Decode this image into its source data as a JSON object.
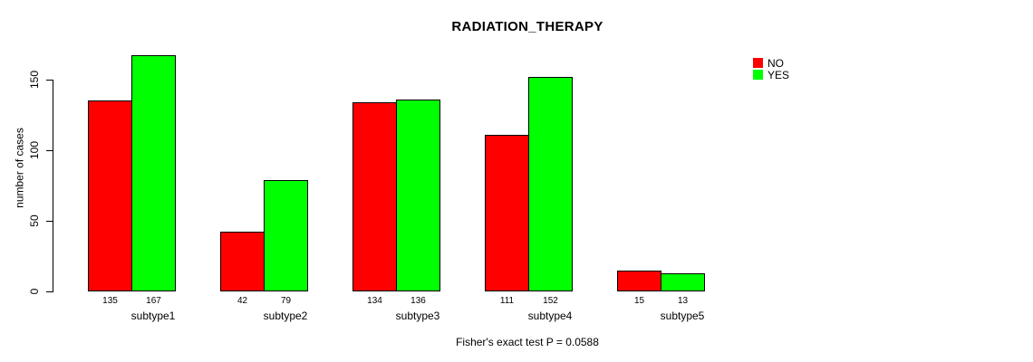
{
  "chart_data": {
    "type": "bar",
    "title": "RADIATION_THERAPY",
    "ylabel": "number of cases",
    "xlabel": "",
    "categories": [
      "subtype1",
      "subtype2",
      "subtype3",
      "subtype4",
      "subtype5"
    ],
    "series": [
      {
        "name": "NO",
        "color": "#ff0000",
        "values": [
          135,
          42,
          134,
          111,
          15
        ]
      },
      {
        "name": "YES",
        "color": "#00ff00",
        "values": [
          167,
          79,
          136,
          152,
          13
        ]
      }
    ],
    "yticks": [
      0,
      50,
      100,
      150
    ],
    "ylim": [
      0,
      170
    ],
    "grid": false,
    "bar_value_labels": true,
    "legend_position": "top-right",
    "caption": "Fisher's exact test P = 0.0588"
  },
  "colors": {
    "background": "#ffffff",
    "axis": "#000000",
    "text": "#000000",
    "bar_border": "#000000",
    "no": "#ff0000",
    "yes": "#00ff00"
  }
}
